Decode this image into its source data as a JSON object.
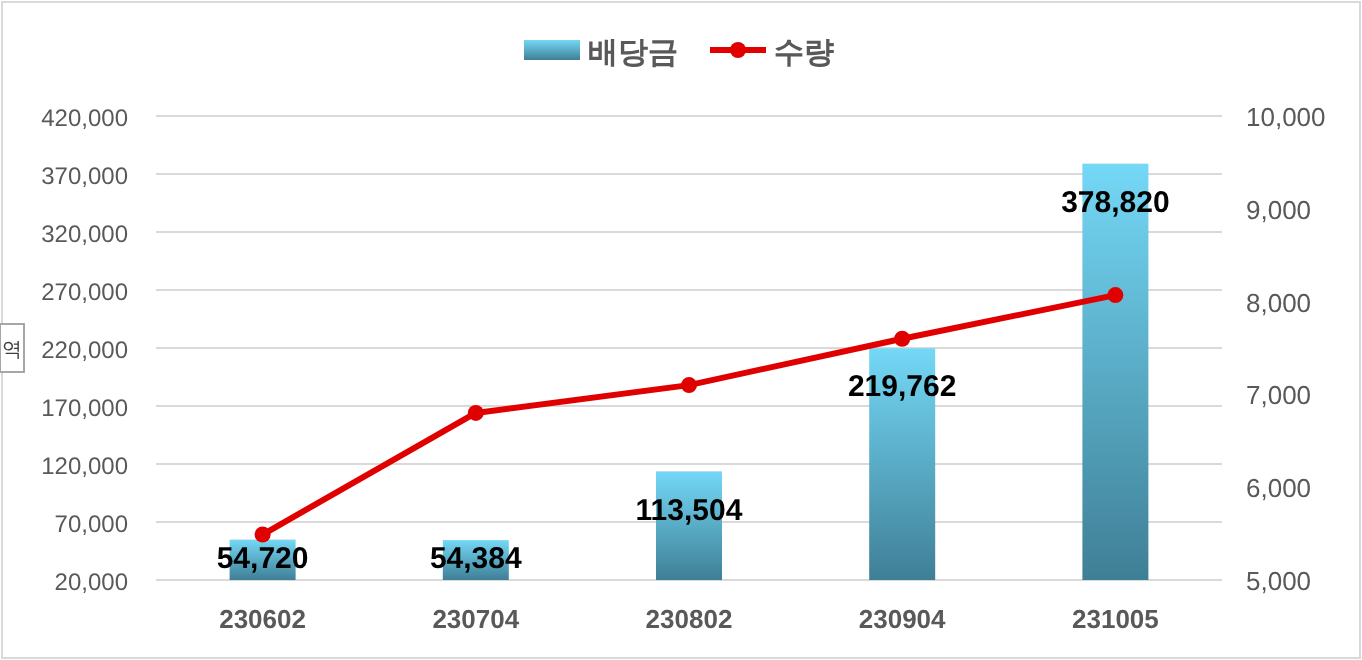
{
  "chart_data": {
    "type": "bar",
    "categories": [
      "230602",
      "230704",
      "230802",
      "230904",
      "231005"
    ],
    "series": [
      {
        "name": "배당금",
        "color": "#5bb8d8",
        "values": [
          54720,
          54384,
          113504,
          219762,
          378820
        ]
      },
      {
        "name": "수량",
        "type": "line",
        "axis": "y2",
        "color": "#e00000",
        "values": [
          5490,
          6800,
          7100,
          7600,
          8070
        ]
      }
    ],
    "ylabel": "역",
    "ylim": [
      20000,
      420000
    ],
    "yticks": [
      {
        "value": 20000,
        "label": "20,000"
      },
      {
        "value": 70000,
        "label": "70,000"
      },
      {
        "value": 120000,
        "label": "120,000"
      },
      {
        "value": 170000,
        "label": "170,000"
      },
      {
        "value": 220000,
        "label": "220,000"
      },
      {
        "value": 270000,
        "label": "270,000"
      },
      {
        "value": 320000,
        "label": "320,000"
      },
      {
        "value": 370000,
        "label": "370,000"
      },
      {
        "value": 420000,
        "label": "420,000"
      }
    ],
    "y2lim": [
      5000,
      10000
    ],
    "y2ticks": [
      {
        "value": 5000,
        "label": "5,000"
      },
      {
        "value": 6000,
        "label": "6,000"
      },
      {
        "value": 7000,
        "label": "7,000"
      },
      {
        "value": 8000,
        "label": "8,000"
      },
      {
        "value": 9000,
        "label": "9,000"
      },
      {
        "value": 10000,
        "label": "10,000"
      }
    ],
    "value_labels": [
      "54,720",
      "54,384",
      "113,504",
      "219,762",
      "378,820"
    ],
    "grid": "y",
    "legend": "top",
    "marker": "circle"
  }
}
